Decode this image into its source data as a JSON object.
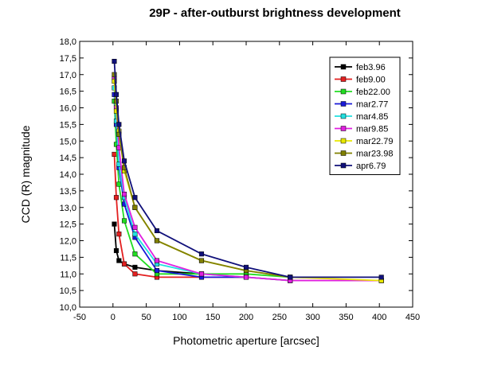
{
  "chart_data": {
    "type": "line",
    "title": "29P - after-outburst brightness development",
    "xlabel": "Photometric aperture [arcsec]",
    "ylabel": "CCD (R) magnitude",
    "xlim": [
      -50,
      450
    ],
    "ylim": [
      10.0,
      18.0
    ],
    "xticks": [
      -50,
      0,
      50,
      100,
      150,
      200,
      250,
      300,
      350,
      400,
      450
    ],
    "yticks": [
      10.0,
      10.5,
      11.0,
      11.5,
      12.0,
      12.5,
      13.0,
      13.5,
      14.0,
      14.5,
      15.0,
      15.5,
      16.0,
      16.5,
      17.0,
      17.5,
      18.0
    ],
    "xtick_labels": [
      "-50",
      "0",
      "50",
      "100",
      "150",
      "200",
      "250",
      "300",
      "350",
      "400",
      "450"
    ],
    "ytick_labels": [
      "10,0",
      "10,5",
      "11,0",
      "11,5",
      "12,0",
      "12,5",
      "13,0",
      "13,5",
      "14,0",
      "14,5",
      "15,0",
      "15,5",
      "16,0",
      "16,5",
      "17,0",
      "17,5",
      "18,0"
    ],
    "legend_position": "top-right",
    "grid": false,
    "series": [
      {
        "name": "feb3.96",
        "color": "#000000",
        "x": [
          2,
          5,
          9,
          17,
          33,
          66,
          133
        ],
        "y": [
          12.5,
          11.7,
          11.4,
          11.3,
          11.2,
          11.1,
          11.0
        ]
      },
      {
        "name": "feb9.00",
        "color": "#e32020",
        "x": [
          2,
          5,
          9,
          17,
          33,
          66,
          133,
          200,
          266,
          403
        ],
        "y": [
          14.6,
          13.3,
          12.2,
          11.3,
          11.0,
          10.9,
          10.9,
          10.9,
          10.8,
          10.8
        ]
      },
      {
        "name": "feb22.00",
        "color": "#22dd22",
        "x": [
          2,
          5,
          9,
          17,
          33,
          66,
          133,
          200,
          266
        ],
        "y": [
          16.2,
          14.9,
          13.7,
          12.6,
          11.6,
          11.0,
          11.0,
          11.0,
          10.9
        ]
      },
      {
        "name": "mar2.77",
        "color": "#1a1ad8",
        "x": [
          2,
          5,
          9,
          17,
          33,
          66,
          133,
          200
        ],
        "y": [
          16.4,
          15.5,
          14.2,
          13.1,
          12.1,
          11.1,
          10.9,
          10.9
        ]
      },
      {
        "name": "mar4.85",
        "color": "#22e0e0",
        "x": [
          2,
          5,
          9,
          17,
          33,
          66,
          133,
          200,
          266
        ],
        "y": [
          16.6,
          15.6,
          14.3,
          13.3,
          12.2,
          11.3,
          11.0,
          10.9,
          10.8
        ]
      },
      {
        "name": "mar9.85",
        "color": "#e020e0",
        "x": [
          2,
          5,
          9,
          17,
          33,
          66,
          133,
          200,
          266,
          403
        ],
        "y": [
          16.9,
          16.0,
          14.8,
          13.4,
          12.4,
          11.4,
          11.0,
          10.9,
          10.8,
          10.8
        ]
      },
      {
        "name": "mar22.79",
        "color": "#e8e800",
        "x": [
          2,
          5,
          9,
          17,
          33,
          66,
          133,
          200,
          266,
          403
        ],
        "y": [
          16.8,
          15.9,
          15.3,
          14.1,
          13.0,
          12.0,
          11.4,
          11.1,
          10.9,
          10.8
        ]
      },
      {
        "name": "mar23.98",
        "color": "#808000",
        "x": [
          2,
          5,
          9,
          17,
          33,
          66,
          133,
          200,
          266
        ],
        "y": [
          17.0,
          16.2,
          15.2,
          14.2,
          13.0,
          12.0,
          11.4,
          11.1,
          10.9
        ]
      },
      {
        "name": "apr6.79",
        "color": "#10107a",
        "x": [
          2,
          5,
          9,
          17,
          33,
          66,
          133,
          200,
          266,
          403
        ],
        "y": [
          17.4,
          16.4,
          15.5,
          14.4,
          13.3,
          12.3,
          11.6,
          11.2,
          10.9,
          10.9
        ]
      }
    ]
  }
}
